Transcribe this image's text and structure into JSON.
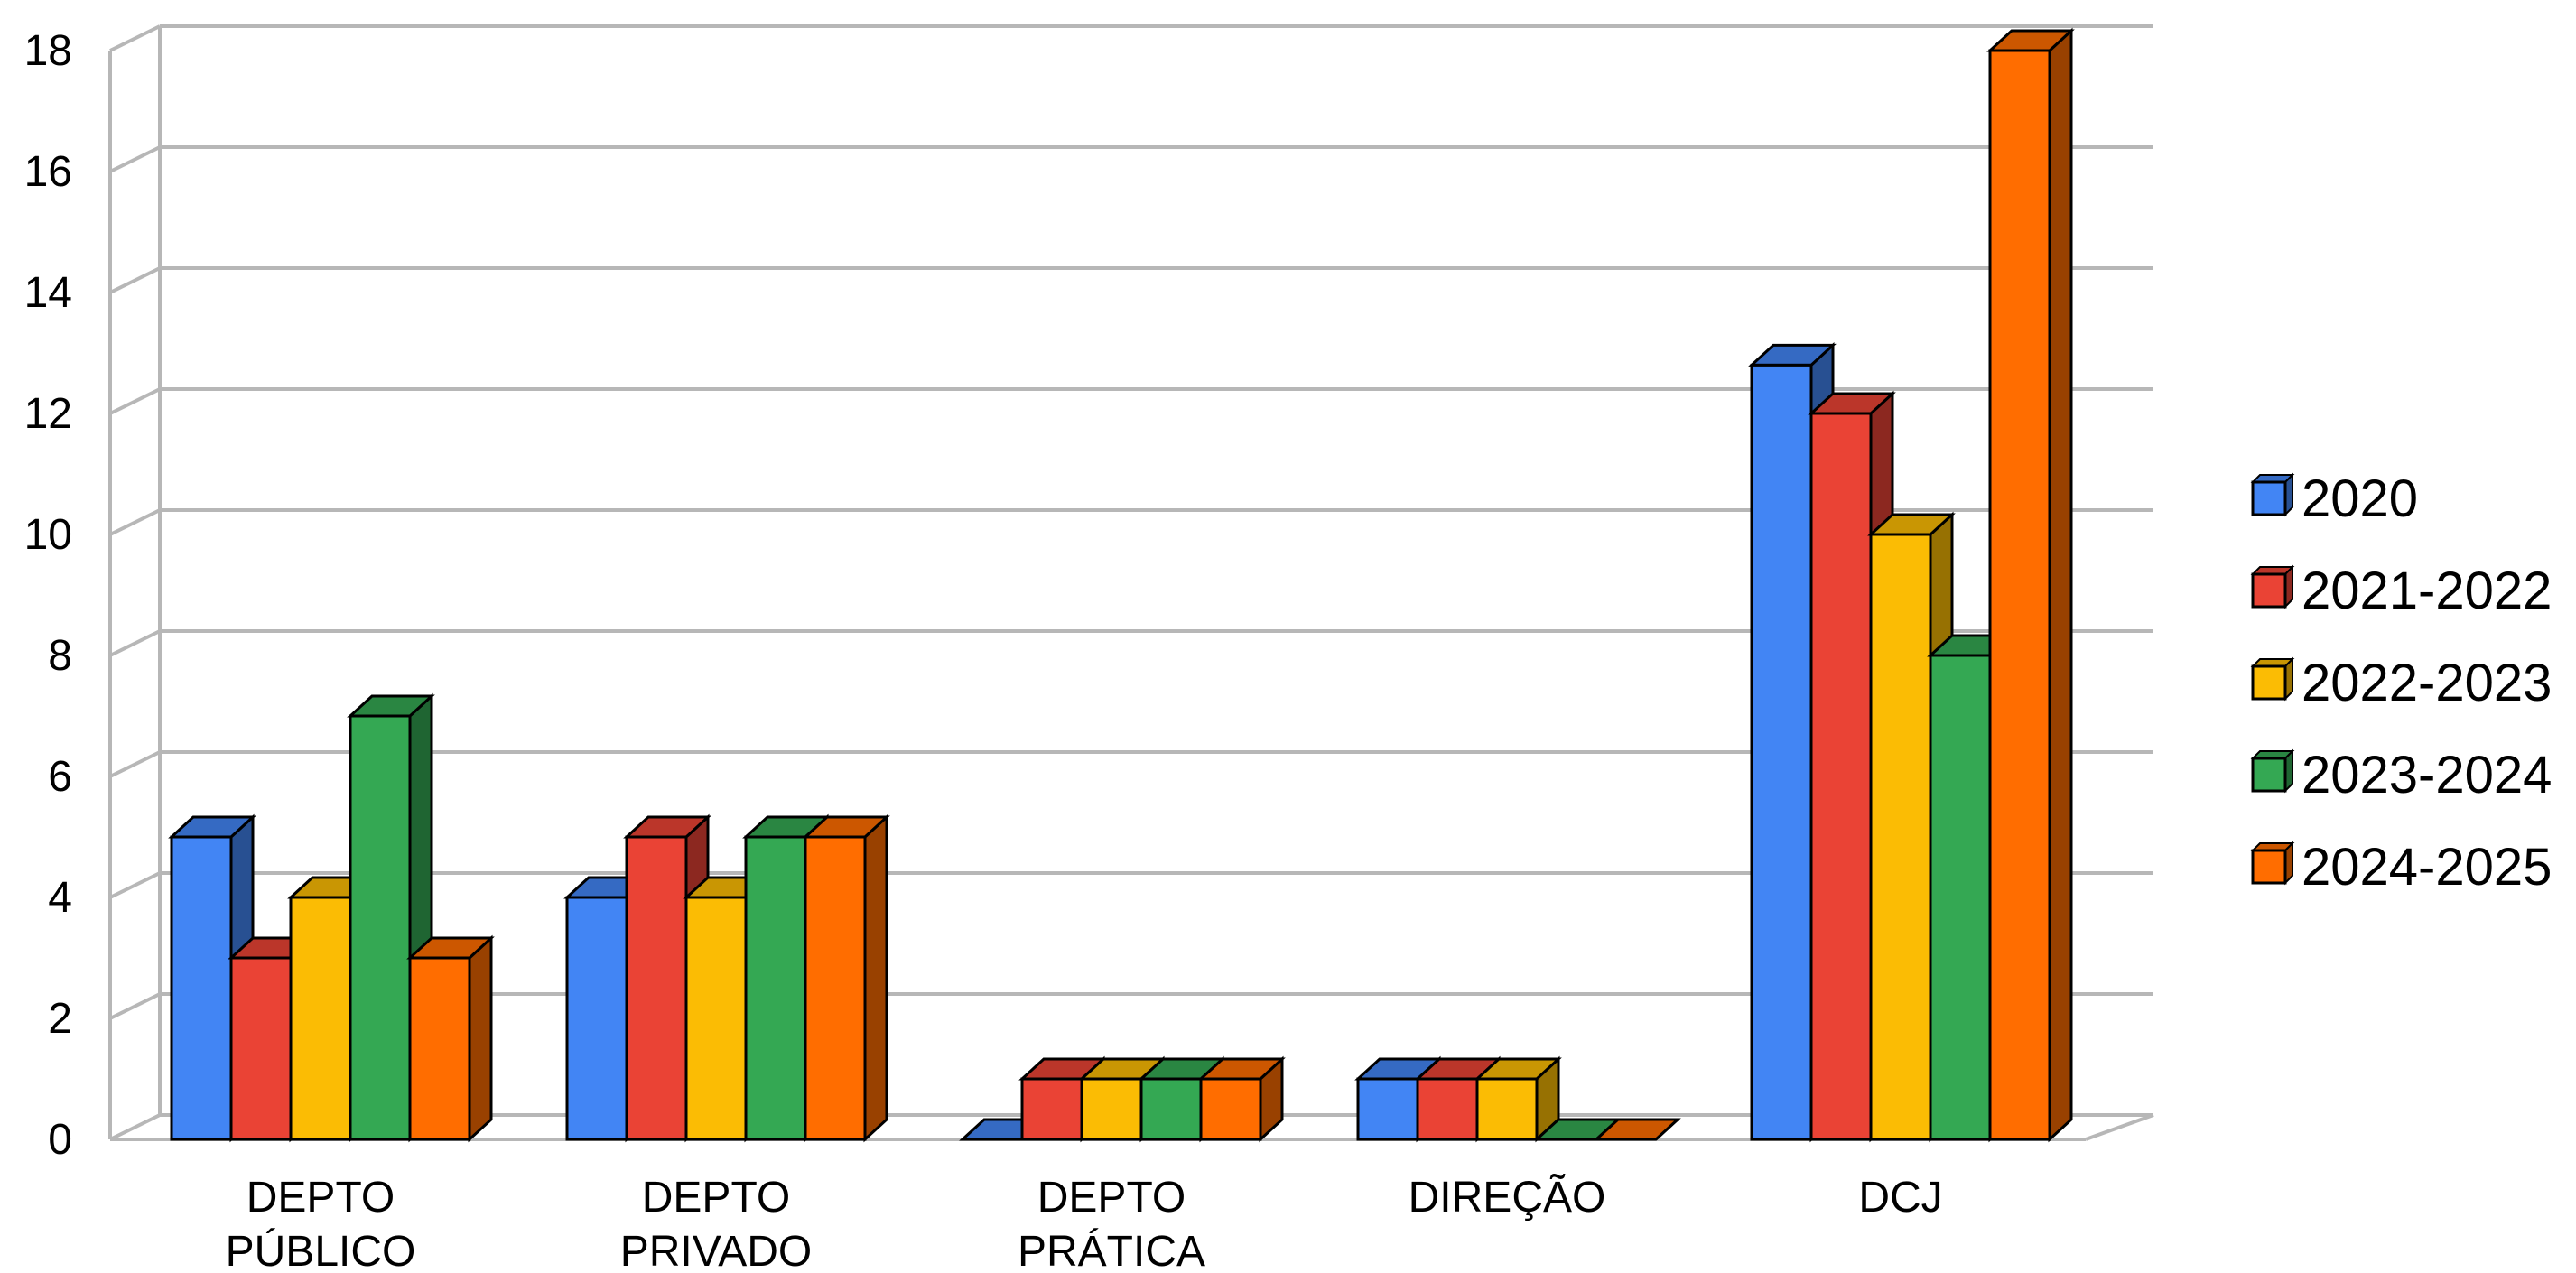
{
  "chart_data": {
    "type": "bar",
    "title": "",
    "xlabel": "",
    "ylabel": "",
    "ylim": [
      0,
      18
    ],
    "yticks": [
      0,
      2,
      4,
      6,
      8,
      10,
      12,
      14,
      16,
      18
    ],
    "grid": true,
    "legend_position": "right",
    "categories": [
      [
        "DEPTO",
        "PÚBLICO"
      ],
      [
        "DEPTO",
        "PRIVADO"
      ],
      [
        "DEPTO",
        "PRÁTICA"
      ],
      [
        "DIREÇÃO"
      ],
      [
        "DCJ"
      ]
    ],
    "series": [
      {
        "name": "2020",
        "color": "#4285F4",
        "values": [
          5,
          4,
          0,
          1,
          12.8
        ]
      },
      {
        "name": "2021-2022",
        "color": "#EA4335",
        "values": [
          3,
          5,
          1,
          1,
          12
        ]
      },
      {
        "name": "2022-2023",
        "color": "#FBBC04",
        "values": [
          4,
          4,
          1,
          1,
          10
        ]
      },
      {
        "name": "2023-2024",
        "color": "#34A853",
        "values": [
          7,
          5,
          1,
          0,
          8
        ]
      },
      {
        "name": "2024-2025",
        "color": "#FF6D00",
        "values": [
          3,
          5,
          1,
          0,
          18
        ]
      }
    ]
  }
}
